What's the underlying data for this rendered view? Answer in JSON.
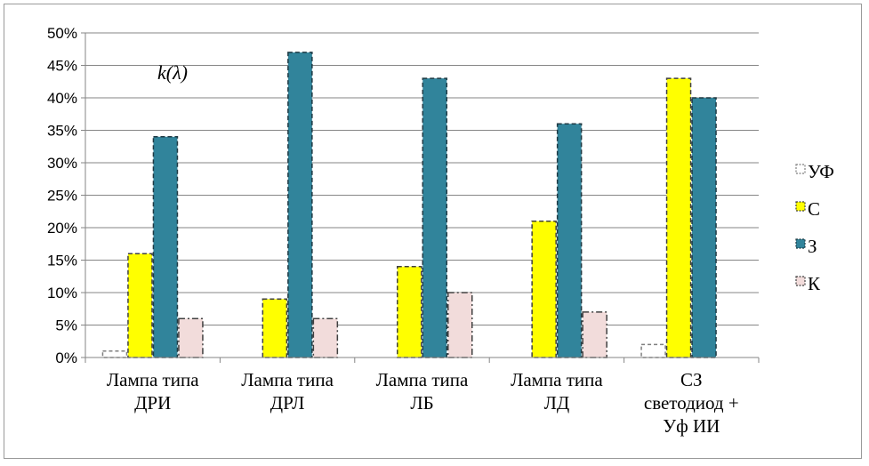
{
  "chart_data": {
    "type": "bar",
    "annotation": "k(λ)",
    "categories": [
      [
        "Лампа типа",
        "ДРИ"
      ],
      [
        "Лампа типа",
        "ДРЛ"
      ],
      [
        "Лампа типа",
        "ЛБ"
      ],
      [
        "Лампа типа",
        "ЛД"
      ],
      [
        "СЗ",
        "светодиод +",
        "Уф ИИ"
      ]
    ],
    "ylim": [
      0,
      50
    ],
    "yticks": [
      "0%",
      "5%",
      "10%",
      "15%",
      "20%",
      "25%",
      "30%",
      "35%",
      "40%",
      "45%",
      "50%"
    ],
    "grid": true,
    "legend_position": "right",
    "series": [
      {
        "name": "УФ",
        "values": [
          1,
          0,
          0,
          0,
          2
        ],
        "color": "#ffffff",
        "stroke": "#7f7f7f",
        "dash": "4,3"
      },
      {
        "name": "С",
        "values": [
          16,
          9,
          14,
          21,
          43
        ],
        "color": "#ffff00",
        "stroke": "#404040",
        "dash": "5,3"
      },
      {
        "name": "З",
        "values": [
          34,
          47,
          43,
          36,
          40
        ],
        "color": "#31849b",
        "stroke": "#1f3a44",
        "dash": "5,3"
      },
      {
        "name": "К",
        "values": [
          6,
          6,
          10,
          7,
          0
        ],
        "color": "#f2dcdb",
        "stroke": "#404040",
        "dash": "7,3,2,3"
      }
    ]
  }
}
